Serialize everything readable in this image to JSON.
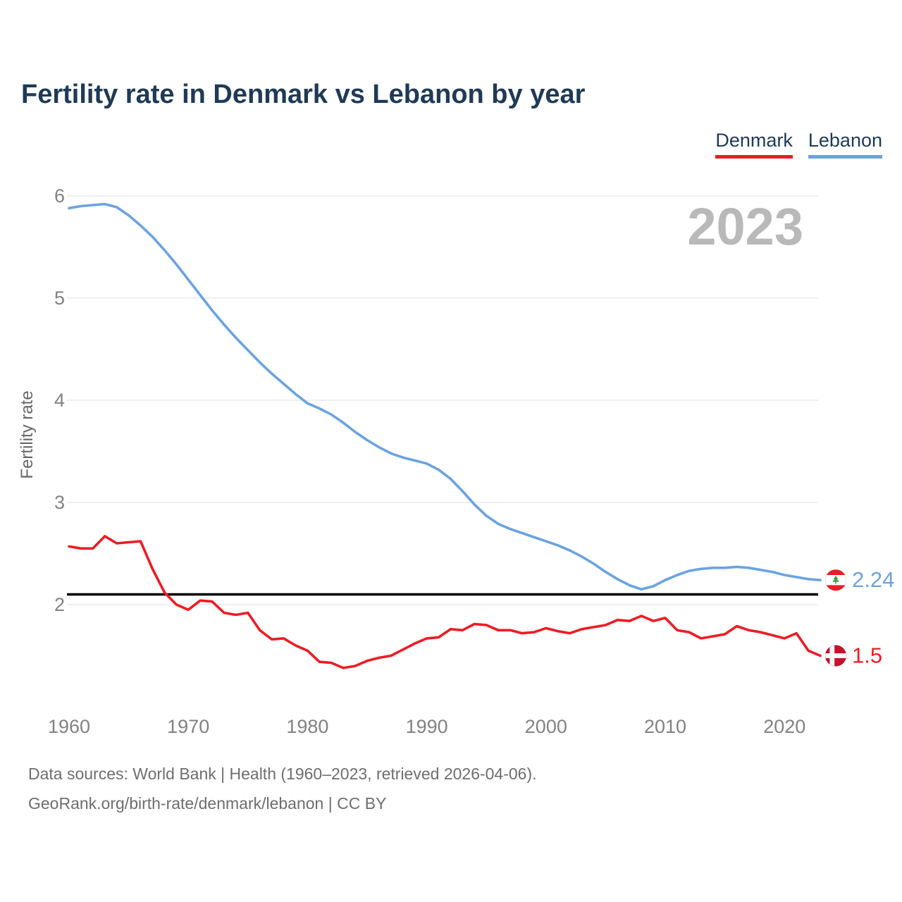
{
  "header": {
    "title": "Fertility rate in Denmark vs Lebanon by year"
  },
  "legend": {
    "items": [
      {
        "label": "Denmark",
        "color": "#ee1c25"
      },
      {
        "label": "Lebanon",
        "color": "#6ba3e0"
      }
    ]
  },
  "chart_data": {
    "type": "line",
    "title": "Fertility rate in Denmark vs Lebanon by year",
    "xlabel": "",
    "ylabel": "Fertility rate",
    "watermark": "2023",
    "grid": "horizontal",
    "legend_position": "top-right",
    "ylim": [
      1.2,
      6.1
    ],
    "xlim": [
      1960,
      2023
    ],
    "y_ticks": [
      2,
      3,
      4,
      5,
      6
    ],
    "x_ticks": [
      1960,
      1970,
      1980,
      1990,
      2000,
      2010,
      2020
    ],
    "reference_line": {
      "value": 2.1,
      "color": "#000000"
    },
    "years": [
      1960,
      1961,
      1962,
      1963,
      1964,
      1965,
      1966,
      1967,
      1968,
      1969,
      1970,
      1971,
      1972,
      1973,
      1974,
      1975,
      1976,
      1977,
      1978,
      1979,
      1980,
      1981,
      1982,
      1983,
      1984,
      1985,
      1986,
      1987,
      1988,
      1989,
      1990,
      1991,
      1992,
      1993,
      1994,
      1995,
      1996,
      1997,
      1998,
      1999,
      2000,
      2001,
      2002,
      2003,
      2004,
      2005,
      2006,
      2007,
      2008,
      2009,
      2010,
      2011,
      2012,
      2013,
      2014,
      2015,
      2016,
      2017,
      2018,
      2019,
      2020,
      2021,
      2022,
      2023
    ],
    "series": [
      {
        "name": "Denmark",
        "color": "#ee1c25",
        "end_label": "1.5",
        "flag": "denmark",
        "values": [
          2.57,
          2.55,
          2.55,
          2.67,
          2.6,
          2.61,
          2.62,
          2.35,
          2.12,
          2.0,
          1.95,
          2.04,
          2.03,
          1.92,
          1.9,
          1.92,
          1.75,
          1.66,
          1.67,
          1.6,
          1.55,
          1.44,
          1.43,
          1.38,
          1.4,
          1.45,
          1.48,
          1.5,
          1.56,
          1.62,
          1.67,
          1.68,
          1.76,
          1.75,
          1.81,
          1.8,
          1.75,
          1.75,
          1.72,
          1.73,
          1.77,
          1.74,
          1.72,
          1.76,
          1.78,
          1.8,
          1.85,
          1.84,
          1.89,
          1.84,
          1.87,
          1.75,
          1.73,
          1.67,
          1.69,
          1.71,
          1.79,
          1.75,
          1.73,
          1.7,
          1.67,
          1.72,
          1.55,
          1.5
        ]
      },
      {
        "name": "Lebanon",
        "color": "#6ba3e0",
        "end_label": "2.24",
        "flag": "lebanon",
        "values": [
          5.88,
          5.9,
          5.91,
          5.92,
          5.89,
          5.81,
          5.71,
          5.6,
          5.47,
          5.33,
          5.18,
          5.03,
          4.88,
          4.74,
          4.61,
          4.49,
          4.37,
          4.26,
          4.16,
          4.06,
          3.97,
          3.92,
          3.86,
          3.78,
          3.69,
          3.61,
          3.54,
          3.48,
          3.44,
          3.41,
          3.38,
          3.32,
          3.23,
          3.11,
          2.98,
          2.87,
          2.79,
          2.74,
          2.7,
          2.66,
          2.62,
          2.58,
          2.53,
          2.47,
          2.4,
          2.32,
          2.25,
          2.19,
          2.15,
          2.18,
          2.24,
          2.29,
          2.33,
          2.35,
          2.36,
          2.36,
          2.37,
          2.36,
          2.34,
          2.32,
          2.29,
          2.27,
          2.25,
          2.24
        ]
      }
    ]
  },
  "footer": {
    "line1": "Data sources: World Bank | Health (1960–2023, retrieved 2026-04-06).",
    "line2": "GeoRank.org/birth-rate/denmark/lebanon | CC BY"
  }
}
